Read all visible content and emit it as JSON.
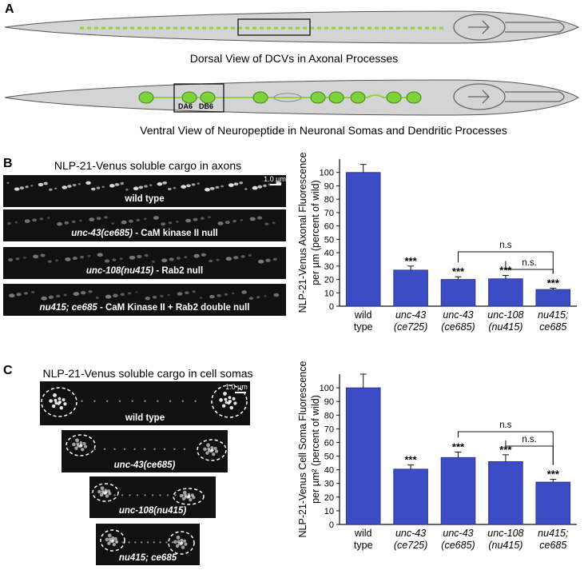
{
  "panels": {
    "a": {
      "letter": "A",
      "dorsal_caption": "Dorsal View of  DCVs in Axonal Processes",
      "ventral_caption": "Ventral View of Neuropeptide in Neuronal Somas and Dendritic Processes",
      "soma_labels": [
        "DA6",
        "DB6"
      ]
    },
    "b": {
      "letter": "B",
      "title": "NLP-21-Venus soluble cargo in axons",
      "scale_bar": "1.0 µm",
      "strips": [
        {
          "italic": "",
          "label": "wild type"
        },
        {
          "italic": "unc-43(ce685)",
          "label": " - CaM kinase II null"
        },
        {
          "italic": "unc-108(nu415)",
          "label": " - Rab2 null"
        },
        {
          "italic": "nu415; ce685",
          "label": " - CaM Kinase II + Rab2 double null"
        }
      ]
    },
    "c": {
      "letter": "C",
      "title": "NLP-21-Venus soluble cargo in cell somas",
      "scale_bar": "1.0 µm",
      "images": [
        "wild type",
        "unc-43(ce685)",
        "unc-108(nu415)",
        "nu415; ce685"
      ]
    }
  },
  "chart_data": [
    {
      "type": "bar",
      "panel": "B",
      "categories": [
        [
          "wild",
          "type"
        ],
        [
          "unc-43",
          "(ce725)"
        ],
        [
          "unc-43",
          "(ce685)"
        ],
        [
          "unc-108",
          "(nu415)"
        ],
        [
          "nu415;",
          "ce685"
        ]
      ],
      "italic_categories": [
        false,
        true,
        true,
        true,
        true
      ],
      "values": [
        100,
        27,
        20,
        20.5,
        12.5
      ],
      "errors": [
        6,
        3,
        2,
        2.5,
        1
      ],
      "significance": [
        "",
        "***",
        "***",
        "***",
        "***"
      ],
      "comparisons": [
        {
          "from": 2,
          "to": 4,
          "label": "n.s"
        },
        {
          "from": 3,
          "to": 4,
          "label": "n.s."
        }
      ],
      "ylabel_lines": [
        "NLP-21-Venus Axonal Fluorescence",
        "per µm (percent of wild)"
      ],
      "ylim": [
        0,
        110
      ],
      "yticks": [
        0,
        10,
        20,
        30,
        40,
        50,
        60,
        70,
        80,
        90,
        100
      ],
      "color": "#3b4cc4"
    },
    {
      "type": "bar",
      "panel": "C",
      "categories": [
        [
          "wild",
          "type"
        ],
        [
          "unc-43",
          "(ce725)"
        ],
        [
          "unc-43",
          "(ce685)"
        ],
        [
          "unc-108",
          "(nu415)"
        ],
        [
          "nu415;",
          "ce685"
        ]
      ],
      "italic_categories": [
        false,
        true,
        true,
        true,
        true
      ],
      "values": [
        100,
        40.5,
        49,
        46,
        31
      ],
      "errors": [
        10,
        3,
        4,
        5,
        2
      ],
      "significance": [
        "",
        "***",
        "***",
        "***",
        "***"
      ],
      "comparisons": [
        {
          "from": 2,
          "to": 4,
          "label": "n.s"
        },
        {
          "from": 3,
          "to": 4,
          "label": "n.s."
        }
      ],
      "ylabel_lines": [
        "NLP-21-Venus Cell Soma Fluorescence",
        "per  µm² (percent of wild)"
      ],
      "ylim": [
        0,
        110
      ],
      "yticks": [
        0,
        10,
        20,
        30,
        40,
        50,
        60,
        70,
        80,
        90,
        100
      ],
      "color": "#3b4cc4"
    }
  ]
}
